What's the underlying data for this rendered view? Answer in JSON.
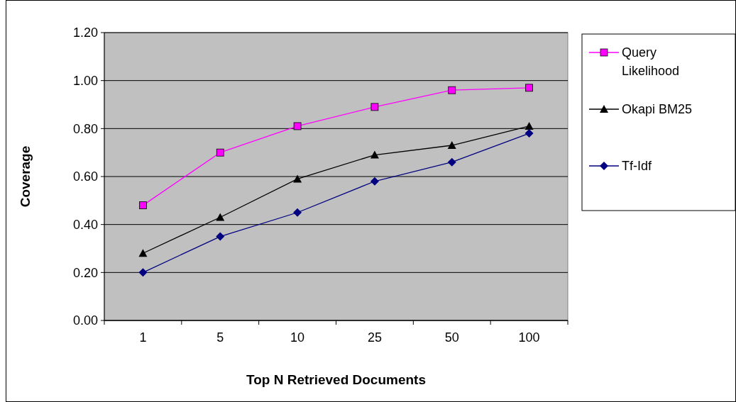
{
  "chart_data": {
    "type": "line",
    "xlabel": "Top N Retrieved Documents",
    "ylabel": "Coverage",
    "categories": [
      "1",
      "5",
      "10",
      "25",
      "50",
      "100"
    ],
    "ylim": [
      0,
      1.2
    ],
    "yticks": [
      {
        "value": 0,
        "label": "0.00"
      },
      {
        "value": 0.2,
        "label": "0.20"
      },
      {
        "value": 0.4,
        "label": "0.40"
      },
      {
        "value": 0.6,
        "label": "0.60"
      },
      {
        "value": 0.8,
        "label": "0.80"
      },
      {
        "value": 1,
        "label": "1.00"
      },
      {
        "value": 1.2,
        "label": "1.20"
      }
    ],
    "grid": "y",
    "legend": "right",
    "line_style": "solid",
    "series": [
      {
        "name": "Query Likelihood",
        "color": "#ff00ff",
        "marker": "square",
        "values": [
          0.48,
          0.7,
          0.81,
          0.89,
          0.96,
          0.97
        ]
      },
      {
        "name": "Okapi BM25",
        "color": "#000000",
        "marker": "triangle",
        "values": [
          0.28,
          0.43,
          0.59,
          0.69,
          0.73,
          0.81
        ]
      },
      {
        "name": "Tf-Idf",
        "color": "#000080",
        "marker": "diamond",
        "values": [
          0.2,
          0.35,
          0.45,
          0.58,
          0.66,
          0.78
        ]
      }
    ]
  }
}
